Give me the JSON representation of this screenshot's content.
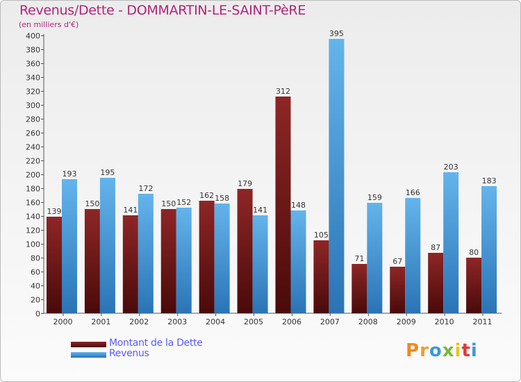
{
  "header": {
    "title": "Revenus/Dette - DOMMARTIN-LE-SAINT-PèRE",
    "subtitle": "(en milliers d'€)"
  },
  "logo": {
    "text": "Proxiti"
  },
  "colors": {
    "title": "#b3237a",
    "legend_text": "#5a5aff",
    "debt_top": "#8e2626",
    "debt_bottom": "#4a0a0a",
    "rev_top": "#64b4ec",
    "rev_bottom": "#2a74b6"
  },
  "chart_data": {
    "type": "bar",
    "title": "Revenus/Dette - DOMMARTIN-LE-SAINT-PèRE",
    "subtitle": "(en milliers d'€)",
    "categories": [
      "2000",
      "2001",
      "2002",
      "2003",
      "2004",
      "2005",
      "2006",
      "2007",
      "2008",
      "2009",
      "2010",
      "2011"
    ],
    "series": [
      {
        "name": "Montant de la Dette",
        "values": [
          139,
          150,
          141,
          150,
          162,
          179,
          312,
          105,
          71,
          67,
          87,
          80
        ]
      },
      {
        "name": "Revenus",
        "values": [
          193,
          195,
          172,
          152,
          158,
          141,
          148,
          395,
          159,
          166,
          203,
          183
        ]
      }
    ],
    "ylim": [
      0,
      400
    ],
    "ytick_step": 20,
    "grid": false,
    "legend_position": "bottom-left"
  }
}
